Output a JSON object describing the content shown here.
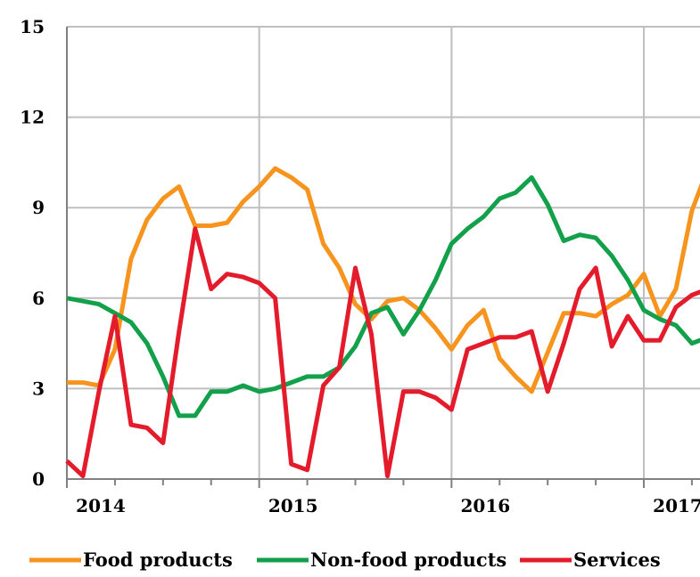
{
  "chart_data": {
    "type": "line",
    "title": "",
    "xlabel": "",
    "ylabel": "",
    "xlim": [
      2014.0,
      2017.292
    ],
    "ylim": [
      0,
      15
    ],
    "y_ticks": [
      0,
      3,
      6,
      9,
      12,
      15
    ],
    "y_tick_labels": [
      "0",
      "3",
      "6",
      "9",
      "12",
      "15"
    ],
    "x_ticks": [
      2014,
      2015,
      2016,
      2017
    ],
    "x_tick_labels": [
      "2014",
      "2015",
      "2016",
      "2017"
    ],
    "grid": true,
    "legend_position": "bottom",
    "series": [
      {
        "name": "Food products",
        "color": "#F7941D",
        "values": [
          3.2,
          3.2,
          3.1,
          4.3,
          7.3,
          8.6,
          9.3,
          9.7,
          8.4,
          8.4,
          8.5,
          9.2,
          9.7,
          10.3,
          10.0,
          9.6,
          7.8,
          7.0,
          5.8,
          5.3,
          5.9,
          6.0,
          5.6,
          5.0,
          4.3,
          5.1,
          5.6,
          4.0,
          3.4,
          2.9,
          4.2,
          5.5,
          5.5,
          5.4,
          5.8,
          6.1,
          6.8,
          5.4,
          6.3,
          8.9,
          10.3
        ]
      },
      {
        "name": "Non-food products",
        "color": "#12A04A",
        "values": [
          6.0,
          5.9,
          5.8,
          5.5,
          5.2,
          4.5,
          3.4,
          2.1,
          2.1,
          2.9,
          2.9,
          3.1,
          2.9,
          3.0,
          3.2,
          3.4,
          3.4,
          3.7,
          4.4,
          5.5,
          5.7,
          4.8,
          5.6,
          6.6,
          7.8,
          8.3,
          8.7,
          9.3,
          9.5,
          10.0,
          9.1,
          7.9,
          8.1,
          8.0,
          7.4,
          6.6,
          5.6,
          5.3,
          5.1,
          4.5,
          4.7
        ]
      },
      {
        "name": "Services",
        "color": "#E31B2B",
        "values": [
          0.6,
          0.1,
          2.9,
          5.4,
          1.8,
          1.7,
          1.2,
          4.9,
          8.3,
          6.3,
          6.8,
          6.7,
          6.5,
          6.0,
          0.5,
          0.3,
          3.1,
          3.7,
          7.0,
          4.8,
          0.1,
          2.9,
          2.9,
          2.7,
          2.3,
          4.3,
          4.5,
          4.7,
          4.7,
          4.9,
          2.9,
          4.5,
          6.3,
          7.0,
          4.4,
          5.4,
          4.6,
          4.6,
          5.7,
          6.1,
          6.3
        ]
      }
    ]
  }
}
